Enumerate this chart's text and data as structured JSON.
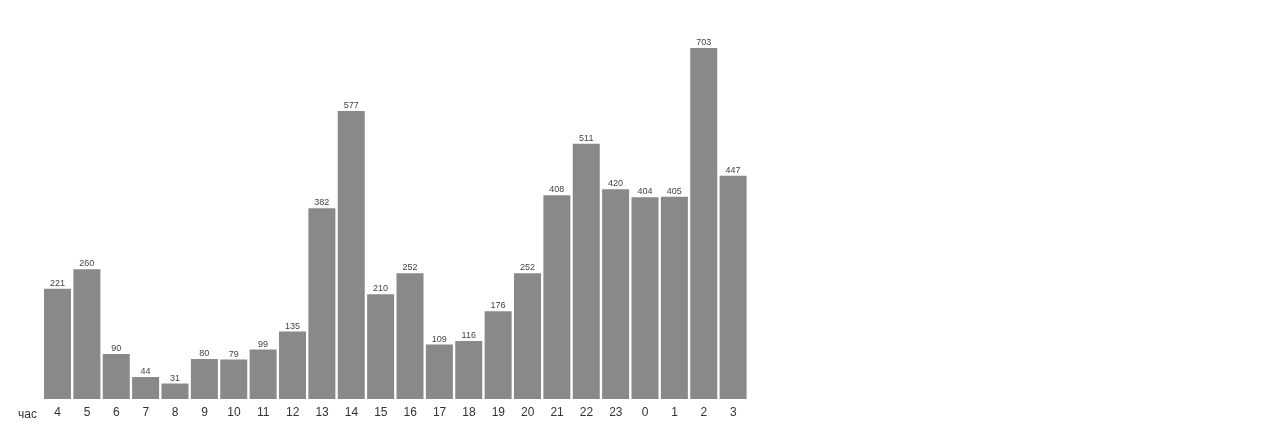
{
  "chart_data": {
    "type": "bar",
    "xlabel": "час",
    "categories": [
      "4",
      "5",
      "6",
      "7",
      "8",
      "9",
      "10",
      "11",
      "12",
      "13",
      "14",
      "15",
      "16",
      "17",
      "18",
      "19",
      "20",
      "21",
      "22",
      "23",
      "0",
      "1",
      "2",
      "3"
    ],
    "values": [
      221,
      260,
      90,
      44,
      31,
      80,
      79,
      99,
      135,
      382,
      577,
      210,
      252,
      109,
      116,
      176,
      252,
      408,
      511,
      420,
      404,
      405,
      703,
      447
    ],
    "color": "#898989",
    "data_labels": true,
    "grid": false,
    "legend": false
  }
}
